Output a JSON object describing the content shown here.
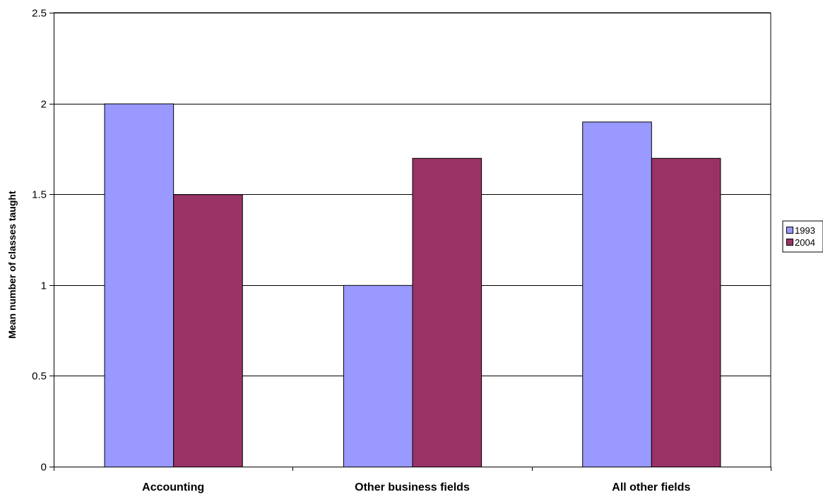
{
  "chart_data": {
    "type": "bar",
    "categories": [
      "Accounting",
      "Other business fields",
      "All other fields"
    ],
    "series": [
      {
        "name": "1993",
        "values": [
          2.0,
          1.0,
          1.9
        ],
        "color": "#9999ff"
      },
      {
        "name": "2004",
        "values": [
          1.5,
          1.7,
          1.7
        ],
        "color": "#993366"
      }
    ],
    "title": "",
    "xlabel": "",
    "ylabel": "Mean number of classes taught",
    "ylim": [
      0,
      2.5
    ],
    "yticks": [
      "0",
      "0.5",
      "1",
      "1.5",
      "2",
      "2.5"
    ],
    "grid": true,
    "legend_position": "right"
  }
}
